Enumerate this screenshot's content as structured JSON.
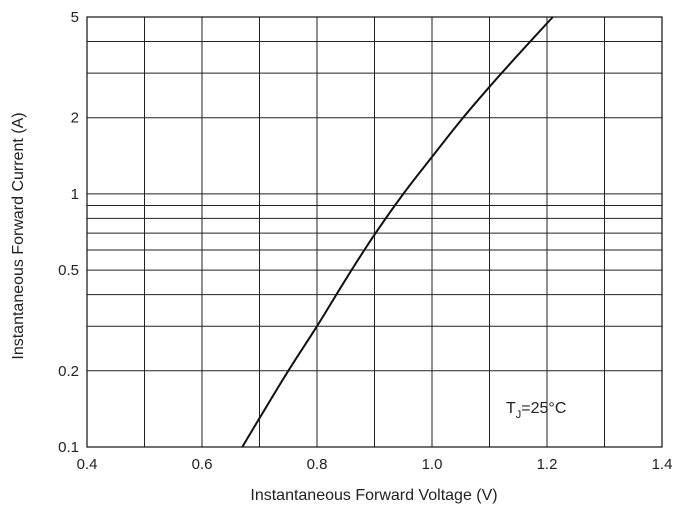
{
  "chart_data": {
    "type": "line",
    "title": "",
    "xlabel": "Instantaneous Forward Voltage (V)",
    "ylabel": "Instantaneous Forward Current (A)",
    "xlim": [
      0.4,
      1.4
    ],
    "ylim": [
      0.1,
      5
    ],
    "yscale": "log",
    "grid": true,
    "x_ticks": [
      "0.4",
      "0.6",
      "0.8",
      "1.0",
      "1.2",
      "1.4"
    ],
    "y_ticks": [
      "0.1",
      "0.2",
      "0.5",
      "1",
      "2",
      "5"
    ],
    "series": [
      {
        "x": [
          0.67,
          0.7,
          0.75,
          0.8,
          0.85,
          0.9,
          0.95,
          1.0,
          1.05,
          1.1,
          1.15,
          1.21
        ],
        "values": [
          0.1,
          0.13,
          0.2,
          0.3,
          0.46,
          0.69,
          1.0,
          1.4,
          1.95,
          2.65,
          3.55,
          5.0
        ]
      }
    ],
    "annotation": {
      "main": "T",
      "sub": "J",
      "rest": "=25°C"
    },
    "colors": {
      "line": "#111111",
      "grid": "#222222",
      "frame": "#111111"
    }
  }
}
